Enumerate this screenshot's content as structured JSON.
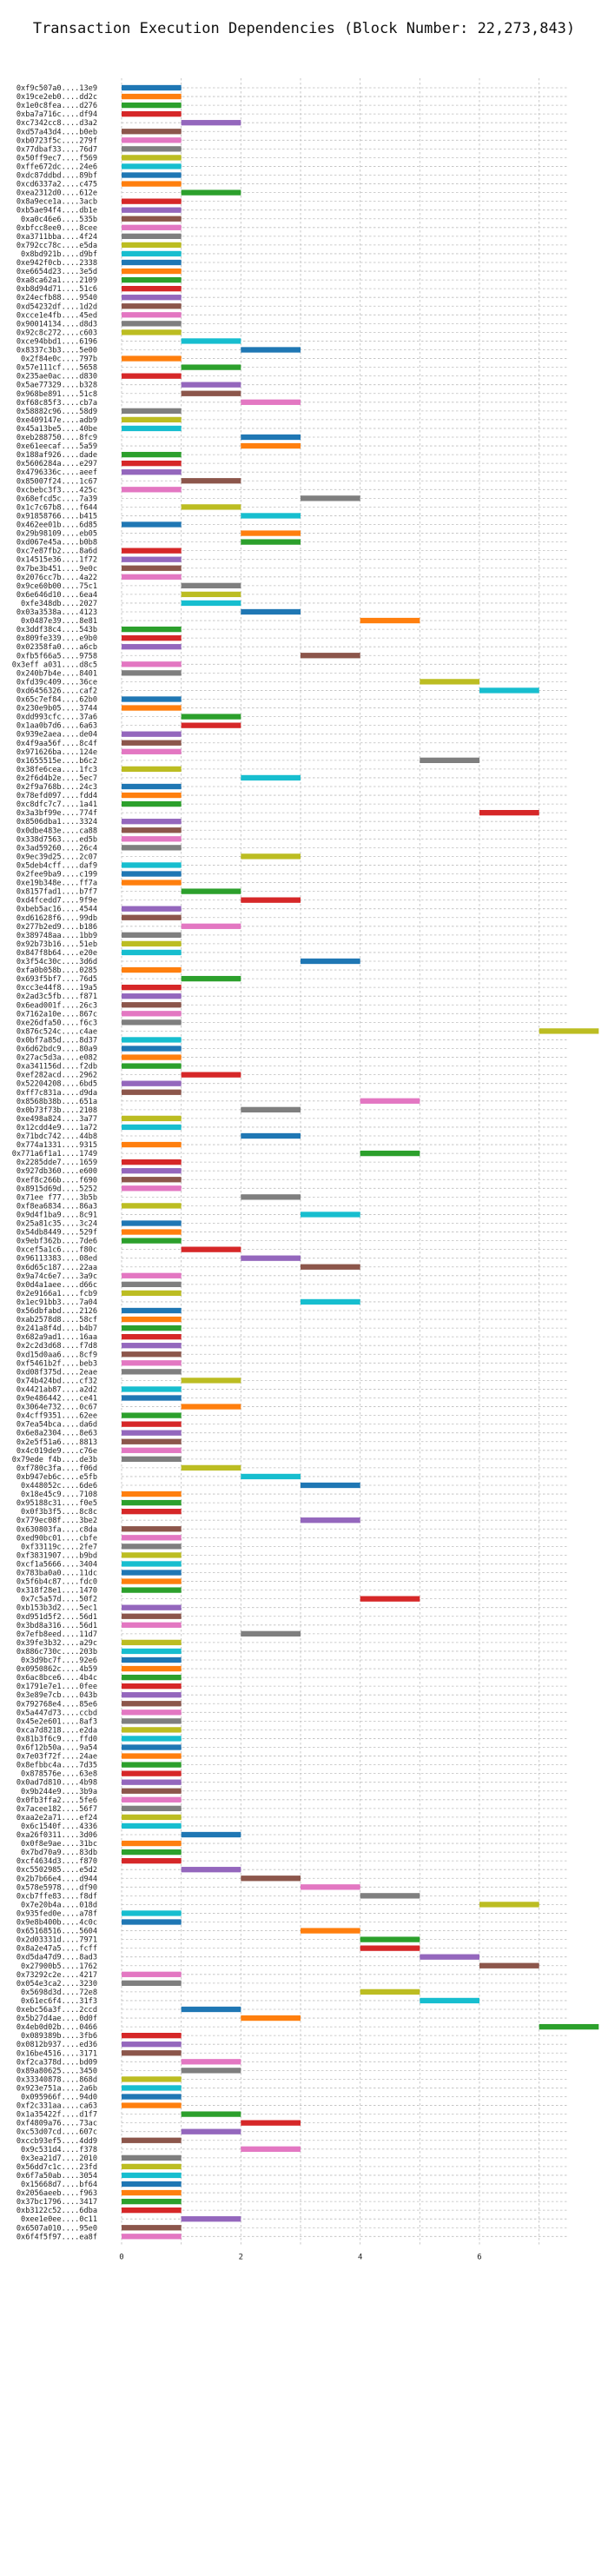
{
  "chart_data": {
    "type": "bar",
    "orientation": "horizontal",
    "title": "Transaction Execution Dependencies (Block Number: 22,273,843)",
    "xlabel": "",
    "ylabel": "",
    "xlim": [
      0,
      7.5
    ],
    "x_ticks": [
      0,
      2,
      4,
      6
    ],
    "grid": true,
    "bar_width": 1,
    "colors": [
      "#1f77b4",
      "#ff7f0e",
      "#2ca02c",
      "#d62728",
      "#9467bd",
      "#8c564b",
      "#e377c2",
      "#7f7f7f",
      "#bcbd22",
      "#17becf"
    ],
    "categories": [
      "0xf9c507a0....13e9",
      "0x19ce2eb0....dd2c",
      "0x1e0c8fea....d276",
      "0xba7a716c....df94",
      "0xc7342cc8....d3a2",
      "0xd57a43d4....b0eb",
      "0xb0723f5c....279f",
      "0x77dbaf33....76d7",
      "0x50ff9ec7....f569",
      "0xffe672dc....24e6",
      "0xdc87ddbd....89bf",
      "0xcd6337a2....c475",
      "0xea2312d0....612e",
      "0x8a9ece1a....3acb",
      "0xb5ae94f4....db1e",
      "0xa0c46e6....535b",
      "0xbfcc8ee0....8cee",
      "0xa3711bba....4f24",
      "0x792cc78c....e5da",
      "0x8bd921b....d9bf",
      "0xe942f0cb....2338",
      "0xe6654d23....3e5d",
      "0xa8ca62a1....2109",
      "0xb8d94d71....51c6",
      "0x24ecfb88....9540",
      "0xd54232df....1d2d",
      "0xcce1e4fb....45ed",
      "0x90014134....d8d3",
      "0x92c8c272....c603",
      "0xce94bbd1....6196",
      "0x8337c3b3....5e00",
      "0x2f84e0c....797b",
      "0x57e111cf....5658",
      "0x235ae0ac....d830",
      "0x5ae77329....b328",
      "0x968be891....51c8",
      "0xf68c85f3....cb7a",
      "0x58882c96....58d9",
      "0xe409147e....adb9",
      "0x45a13be5....40be",
      "0xeb288750....8fc9",
      "0xe61eecaf....5a59",
      "0x188af926....dade",
      "0x5606284a....e297",
      "0x4796336c....aeef",
      "0x85007f24....1c67",
      "0xcbebc3f3....425c",
      "0x68efcd5c....7a39",
      "0x1c7c67b8....f644",
      "0x91858766....b415",
      "0x462ee01b....6d85",
      "0x29b98109....eb05",
      "0xd067e45a....b0b8",
      "0xc7e87fb2....8a6d",
      "0x14515e36....1f72",
      "0x7be3b451....9e0c",
      "0x2076cc7b....4a22",
      "0x9ce60b00....75c1",
      "0x6e646d10....6ea4",
      "0xfe348db....2027",
      "0x03a3538a....4123",
      "0x0487e39....8e81",
      "0x3ddf38c4....543b",
      "0x809fe339....e9b0",
      "0x02358fa0....a6cb",
      "0xfb5f66a5....9758",
      "0x3eff a031....d8c5",
      "0x240b7b4e....8401",
      "0xfd39c409....36ce",
      "0xd6456326....caf2",
      "0x65c7ef84....62b0",
      "0x230e9b05....3744",
      "0xdd993cfc....37a6",
      "0x1aa0b7d6....6a63",
      "0x939e2aea....de04",
      "0x4f9aa56f....8c4f",
      "0x971626ba....124e",
      "0x1655515e....b6c2",
      "0x38fe6cea....1fc3",
      "0x2f6d4b2e....5ec7",
      "0x2f9a768b....24c3",
      "0x78efd097....fdd4",
      "0xc8dfc7c7....1a41",
      "0x3a3bf99e....774f",
      "0x8506dba1....3324",
      "0x0dbe483e....ca88",
      "0x338d7563....ed5b",
      "0x3ad59260....26c4",
      "0x9ec39d25....2c07",
      "0x5deb4cff....daf9",
      "0x2fee9ba9....c199",
      "0xe19b348e....ff7a",
      "0x8157fad1....b7f7",
      "0xd4fcedd7....9f9e",
      "0xbeb5ac16....4544",
      "0xd61628f6....99db",
      "0x277b2ed9....b186",
      "0x389748aa....1bb9",
      "0x92b73b16....51eb",
      "0x847f8b64....e20e",
      "0x3f54c30c....3d6d",
      "0xfa0b058b....0285",
      "0x693f5bf7....76d5",
      "0xcc3e44f8....19a5",
      "0x2ad3c5fb....f871",
      "0x6ead001f....26c3",
      "0x7162a10e....867c",
      "0xe26dfa50....f6c3",
      "0x876c524c....c4ae",
      "0x0bf7a85d....8d37",
      "0x6d62bdc9....80a9",
      "0x27ac5d3a....e082",
      "0xa341156d....f2db",
      "0xef282acd....2962",
      "0x52204208....6bd5",
      "0xff7c831a....d9da",
      "0x8568b38b....651a",
      "0x0b73f73b....2108",
      "0xe498a824....3a77",
      "0x12cdd4e9....1a72",
      "0x71bdc742....44b8",
      "0x774a1331....9315",
      "0x771a6f1a1....1749",
      "0x2285dde7....1659",
      "0x927db360....e600",
      "0xef8c266b....f690",
      "0x8915d69d....5252",
      "0x71ee f77....3b5b",
      "0xf8ea6834....86a3",
      "0x9d4f1ba9....8c91",
      "0x25a81c35....3c24",
      "0x54db8449....529f",
      "0x9ebf362b....7de6",
      "0xcef5a1c6....f80c",
      "0x96113383....08ed",
      "0x6d65c187....22aa",
      "0x9a74c6e7....3a9c",
      "0x0d4a1aee....d66c",
      "0x2e9166a1....fcb9",
      "0x1ec91bb3....7a04",
      "0x56dbfabd....2126",
      "0xab2578d8....58cf",
      "0x241a8f4d....b4b7",
      "0x682a9ad1....16aa",
      "0x2c2d3d68....f7d8",
      "0xd15d0aa6....8cf9",
      "0xf5461b2f....beb3",
      "0xd08f375d....2eae",
      "0x74b424bd....cf32",
      "0x4421ab87....a2d2",
      "0x9e486442....ce41",
      "0x3064e732....0c67",
      "0x4cff9351....62ee",
      "0x7ea54bca....da6d",
      "0x6e8a2304....8e63",
      "0x2e5f51a6....8813",
      "0x4c019de9....c76e",
      "0x79ede f4b....de3b",
      "0xf780c3fa....f06d",
      "0xb947eb6c....e5fb",
      "0x448052c....6de6",
      "0x18e45c9....7108",
      "0x95188c31....f0e5",
      "0x0f3b3f5....8c8c",
      "0x779ec08f....3be2",
      "0x630803fa....c8da",
      "0xed90bc01....cbfe",
      "0xf33119c....2fe7",
      "0xf3831907....b9bd",
      "0xcf1a5666....3404",
      "0x783ba0a0....11dc",
      "0x5f6b4c87....fdc0",
      "0x318f28e1....1470",
      "0x7c5a57d....50f2",
      "0xb153b3d2....5ec1",
      "0xd951d5f2....56d1",
      "0x3bd8a316....56d1",
      "0x7efb8eed....11d7",
      "0x39fe3b32....a29c",
      "0x886c730c....203b",
      "0x3d9bc7f....92e6",
      "0x0950862c....4b59",
      "0x6ac8bce6....4b4c",
      "0x1791e7e1....0fee",
      "0x3e89e7cb....043b",
      "0x792768e4....85e6",
      "0x5a447d73....ccbd",
      "0x45e2e601....8af3",
      "0xca7d8218....e2da",
      "0x81b3f6c9....ffd0",
      "0x6f12b50a....9a54",
      "0x7e03f72f....24ae",
      "0x8efbbc4a....7d35",
      "0x878576e....63e8",
      "0x0ad7d810....4b98",
      "0x9b244e9....3b9a",
      "0x0fb3ffa2....5fe6",
      "0x7acee182....56f7",
      "0xaa2e2a71....ef24",
      "0x6c1540f....4336",
      "0xa26f0311....3d06",
      "0x0f8e9ae....31bc",
      "0x7bd70a9....83db",
      "0xcf4634d3....f870",
      "0xc5502985....e5d2",
      "0x2b7b66e4....d944",
      "0x578e5978....df90",
      "0xcb7ffe83....f8df",
      "0x7e20b4a....018d",
      "0x935fed0e....a78f",
      "0x9e8b400b....4c0c",
      "0x65168516....5604",
      "0x2d03331d....7971",
      "0x8a2e47a5....fcff",
      "0xd5da47d9....8ad3",
      "0x27900b5....1762",
      "0x73292c2e....4217",
      "0x054e3ca2....3230",
      "0x5698d3d....72e8",
      "0x61ec6f4....31f3",
      "0xebc56a3f....2ccd",
      "0x5b27d4ae....0d0f",
      "0x4eb0d02b....0466",
      "0x089389b....3fb6",
      "0x0812b937....ed36",
      "0x16be4516....3171",
      "0xf2ca378d....bd09",
      "0x89a80625....3450",
      "0x33340878....868d",
      "0x923e751a....2a6b",
      "0x095966f....94d0",
      "0xf2c331aa....ca63",
      "0x1a35422f....d1f7",
      "0xf4809a76....73ac",
      "0xc53d07cd....607c",
      "0xccb93ef5....4dd9",
      "0x9c531d4....f378",
      "0x3ea21d7....2010",
      "0x56dd7c1c....23fd",
      "0x6f7a50ab....3054",
      "0x15668d7....bf64",
      "0x2056aeeb....f963",
      "0x37bc1796....3417",
      "0xb3122c52....6dba",
      "0xee1e0ee....0c11",
      "0x6507a010....95e0",
      "0x6f4f5f97....ea8f"
    ],
    "starts": [
      0,
      0,
      0,
      0,
      1,
      0,
      0,
      0,
      0,
      0,
      0,
      0,
      1,
      0,
      0,
      0,
      0,
      0,
      0,
      0,
      0,
      0,
      0,
      0,
      0,
      0,
      0,
      0,
      0,
      1,
      2,
      0,
      1,
      0,
      1,
      1,
      2,
      0,
      0,
      0,
      2,
      2,
      0,
      0,
      0,
      1,
      0,
      3,
      1,
      2,
      0,
      2,
      2,
      0,
      0,
      0,
      0,
      1,
      1,
      1,
      2,
      4,
      0,
      0,
      0,
      3,
      0,
      0,
      5,
      6,
      0,
      0,
      1,
      1,
      0,
      0,
      0,
      5,
      0,
      2,
      0,
      0,
      0,
      6,
      0,
      0,
      0,
      0,
      2,
      0,
      0,
      0,
      1,
      2,
      0,
      0,
      1,
      0,
      0,
      0,
      3,
      0,
      1,
      0,
      0,
      0,
      0,
      0,
      7,
      0,
      0,
      0,
      0,
      1,
      0,
      0,
      4,
      2,
      0,
      0,
      2,
      0,
      4,
      0,
      0,
      0,
      0,
      2,
      0,
      3,
      0,
      0,
      0,
      1,
      2,
      3,
      0,
      0,
      0,
      3,
      0,
      0,
      0,
      0,
      0,
      0,
      0,
      0,
      1,
      0,
      0,
      1,
      0,
      0,
      0,
      0,
      0,
      0,
      1,
      2,
      3,
      0,
      0,
      0,
      3,
      0,
      0,
      0,
      0,
      0,
      0,
      0,
      0,
      4,
      0,
      0,
      0,
      2,
      0,
      0,
      0,
      0,
      0,
      0,
      0,
      0,
      0,
      0,
      0,
      0,
      0,
      0,
      0,
      0,
      0,
      0,
      0,
      0,
      0,
      0,
      1,
      0,
      0,
      0,
      1,
      2,
      3,
      4,
      6,
      0,
      0,
      3,
      4,
      4,
      5,
      6,
      0,
      0,
      4,
      5,
      1,
      2,
      7,
      0,
      0,
      0,
      1,
      1,
      0,
      0,
      0,
      0,
      1,
      2,
      1,
      0,
      2,
      0,
      0,
      0,
      0,
      0,
      0,
      0,
      1,
      0,
      0
    ],
    "color_index": [
      0,
      1,
      2,
      3,
      4,
      5,
      6,
      7,
      8,
      9,
      0,
      1,
      2,
      3,
      4,
      5,
      6,
      7,
      8,
      9,
      0,
      1,
      2,
      3,
      4,
      5,
      6,
      7,
      8,
      9,
      0,
      1,
      2,
      3,
      4,
      5,
      6,
      7,
      8,
      9,
      0,
      1,
      2,
      3,
      4,
      5,
      6,
      7,
      8,
      9,
      0,
      1,
      2,
      3,
      4,
      5,
      6,
      7,
      8,
      9,
      0,
      1,
      2,
      3,
      4,
      5,
      6,
      7,
      8,
      9,
      0,
      1,
      2,
      3,
      4,
      5,
      6,
      7,
      8,
      9,
      0,
      1,
      2,
      3,
      4,
      5,
      6,
      7,
      8,
      9,
      0,
      1,
      2,
      3,
      4,
      5,
      6,
      7,
      8,
      9,
      0,
      1,
      2,
      3,
      4,
      5,
      6,
      7,
      8,
      9,
      0,
      1,
      2,
      3,
      4,
      5,
      6,
      7,
      8,
      9,
      0,
      1,
      2,
      3,
      4,
      5,
      6,
      7,
      8,
      9,
      0,
      1,
      2,
      3,
      4,
      5,
      6,
      7,
      8,
      9,
      0,
      1,
      2,
      3,
      4,
      5,
      6,
      7,
      8,
      9,
      0,
      1,
      2,
      3,
      4,
      5,
      6,
      7,
      8,
      9,
      0,
      1,
      2,
      3,
      4,
      5,
      6,
      7,
      8,
      9,
      0,
      1,
      2,
      3,
      4,
      5,
      6,
      7,
      8,
      9,
      0,
      1,
      2,
      3,
      4,
      5,
      6,
      7,
      8,
      9,
      0,
      1,
      2,
      3,
      4,
      5,
      6,
      7,
      8,
      9,
      0,
      1,
      2,
      3,
      4,
      5,
      6,
      7,
      8,
      9,
      0,
      1,
      2,
      3,
      4,
      5,
      6,
      7,
      8,
      9,
      0,
      1,
      2,
      3,
      4,
      5,
      6,
      7,
      8,
      9,
      0,
      1,
      2,
      3,
      4,
      5,
      6,
      7,
      8,
      9,
      0,
      1,
      2,
      3,
      4,
      5,
      6
    ]
  }
}
